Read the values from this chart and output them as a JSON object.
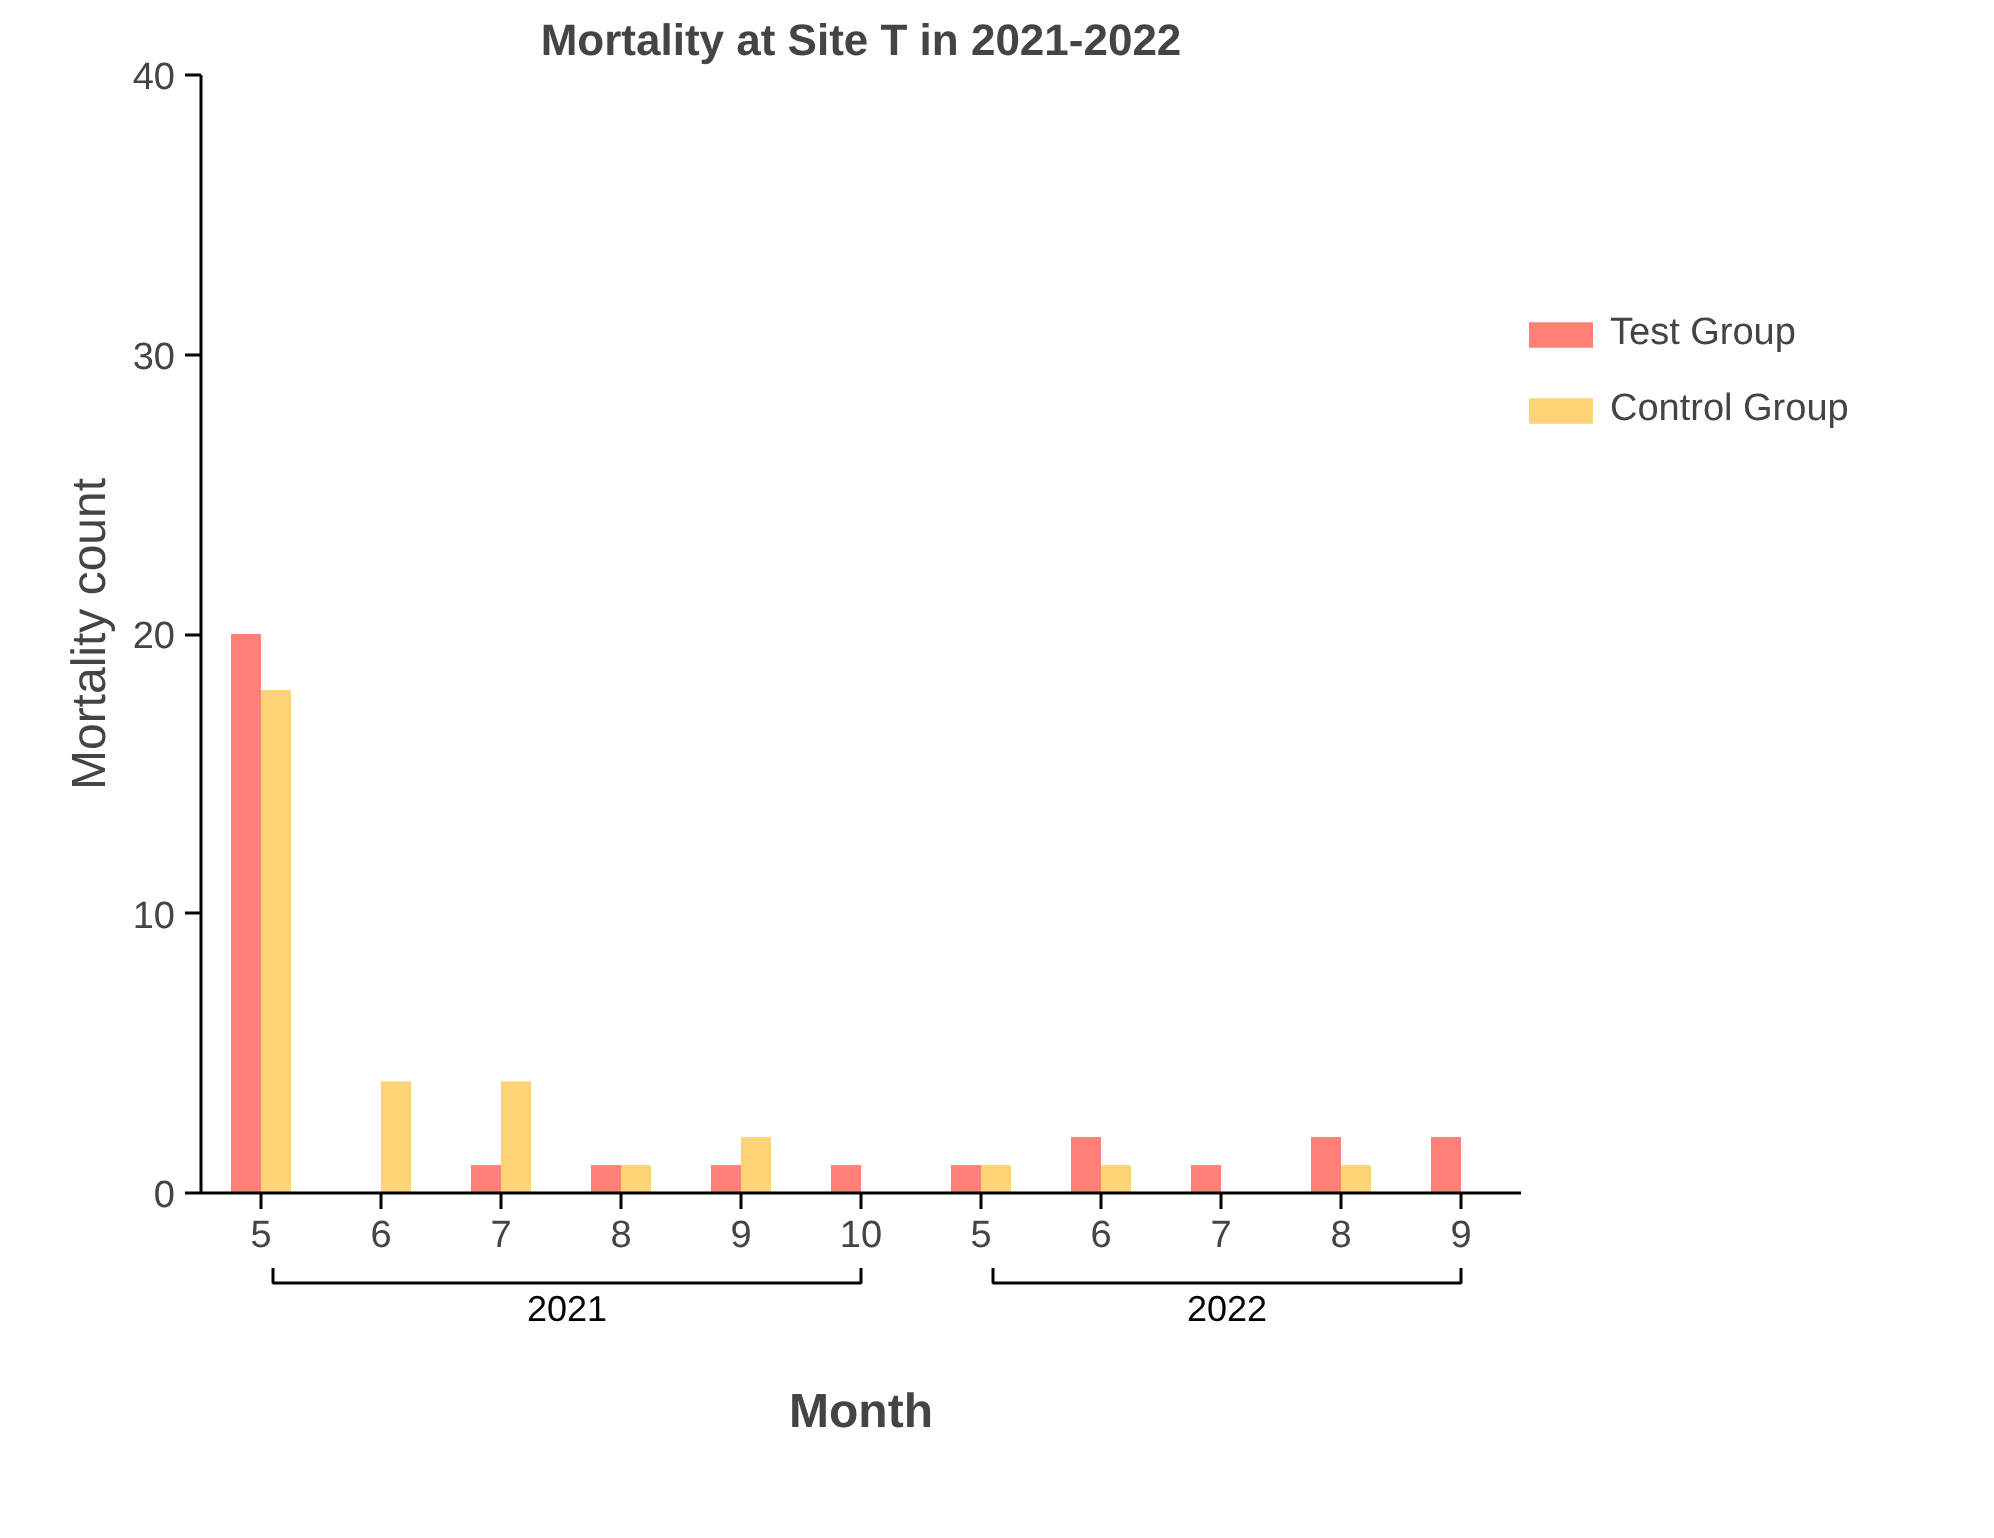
{
  "chart_data": {
    "type": "bar",
    "title": "Mortality at Site T in 2021-2022",
    "xlabel": "Month",
    "ylabel": "Mortality count",
    "categories": [
      "5",
      "6",
      "7",
      "8",
      "9",
      "10",
      "5",
      "6",
      "7",
      "8",
      "9"
    ],
    "series": [
      {
        "name": "Test Group",
        "color": "#ff8077",
        "values": [
          20,
          0,
          1,
          1,
          1,
          1,
          1,
          2,
          1,
          2,
          2
        ]
      },
      {
        "name": "Control Group",
        "color": "#ffd479",
        "values": [
          18,
          4,
          4,
          1,
          2,
          0,
          1,
          1,
          0,
          1,
          0
        ]
      }
    ],
    "annotations": [
      "2021",
      "2022"
    ],
    "ylim": [
      0,
      40
    ],
    "yticks": [
      0,
      10,
      20,
      30,
      40
    ],
    "grid": false,
    "legend": "top right"
  }
}
